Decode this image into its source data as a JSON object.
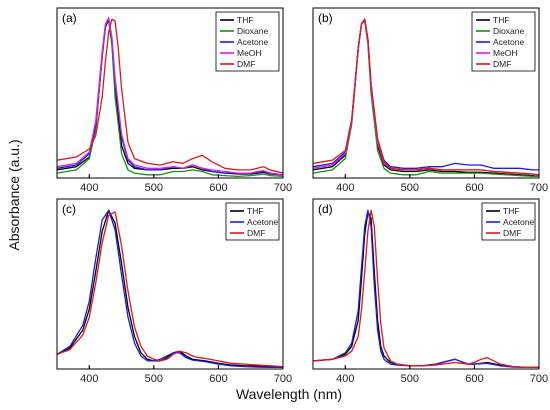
{
  "figure": {
    "xlabel": "Wavelength (nm)",
    "ylabel": "Absorbance (a.u.)"
  },
  "chart_data": [
    {
      "type": "line",
      "panel_label": "(a)",
      "xlim": [
        350,
        700
      ],
      "xticks": [
        400,
        500,
        600,
        700
      ],
      "ylim": [
        0,
        1.05
      ],
      "legend_position": "top-right",
      "series": [
        {
          "name": "THF",
          "color": "#000000",
          "x": [
            350,
            380,
            400,
            410,
            420,
            425,
            430,
            435,
            440,
            450,
            460,
            470,
            490,
            510,
            530,
            545,
            560,
            575,
            590,
            610,
            630,
            650,
            660,
            670,
            680,
            700
          ],
          "y": [
            0.05,
            0.07,
            0.13,
            0.3,
            0.75,
            0.93,
            0.98,
            0.85,
            0.55,
            0.2,
            0.09,
            0.06,
            0.05,
            0.05,
            0.06,
            0.06,
            0.07,
            0.05,
            0.04,
            0.03,
            0.025,
            0.025,
            0.03,
            0.035,
            0.025,
            0.02
          ]
        },
        {
          "name": "Dioxane",
          "color": "#1a8c1a",
          "x": [
            350,
            380,
            400,
            410,
            420,
            425,
            430,
            435,
            440,
            450,
            460,
            470,
            490,
            510,
            530,
            545,
            560,
            575,
            590,
            610,
            630,
            650,
            660,
            670,
            680,
            700
          ],
          "y": [
            0.03,
            0.05,
            0.12,
            0.3,
            0.75,
            0.94,
            0.97,
            0.82,
            0.5,
            0.15,
            0.05,
            0.03,
            0.02,
            0.02,
            0.04,
            0.04,
            0.05,
            0.04,
            0.02,
            0.015,
            0.01,
            0.015,
            0.02,
            0.025,
            0.015,
            0.01
          ]
        },
        {
          "name": "Acetone",
          "color": "#1a1aee",
          "x": [
            350,
            380,
            400,
            410,
            420,
            425,
            430,
            435,
            440,
            450,
            460,
            470,
            490,
            510,
            530,
            545,
            560,
            575,
            590,
            610,
            630,
            650,
            660,
            670,
            680,
            700
          ],
          "y": [
            0.06,
            0.08,
            0.15,
            0.33,
            0.77,
            0.94,
            0.98,
            0.86,
            0.6,
            0.25,
            0.11,
            0.07,
            0.05,
            0.05,
            0.07,
            0.06,
            0.08,
            0.06,
            0.04,
            0.03,
            0.03,
            0.03,
            0.035,
            0.04,
            0.03,
            0.02
          ]
        },
        {
          "name": "MeOH",
          "color": "#e020e0",
          "x": [
            350,
            380,
            400,
            410,
            420,
            425,
            430,
            435,
            440,
            450,
            460,
            470,
            490,
            510,
            530,
            545,
            560,
            575,
            590,
            610,
            630,
            650,
            660,
            670,
            680,
            700
          ],
          "y": [
            0.07,
            0.09,
            0.16,
            0.35,
            0.78,
            0.95,
            0.99,
            0.87,
            0.62,
            0.27,
            0.12,
            0.08,
            0.06,
            0.06,
            0.07,
            0.06,
            0.08,
            0.06,
            0.05,
            0.04,
            0.03,
            0.03,
            0.04,
            0.045,
            0.03,
            0.02
          ]
        },
        {
          "name": "DMF",
          "color": "#e01818",
          "x": [
            350,
            380,
            400,
            410,
            420,
            425,
            430,
            435,
            440,
            445,
            450,
            460,
            470,
            490,
            510,
            530,
            545,
            560,
            575,
            590,
            610,
            630,
            650,
            660,
            670,
            680,
            700
          ],
          "y": [
            0.11,
            0.13,
            0.18,
            0.26,
            0.5,
            0.72,
            0.9,
            0.98,
            0.97,
            0.8,
            0.55,
            0.22,
            0.12,
            0.09,
            0.08,
            0.1,
            0.09,
            0.12,
            0.14,
            0.1,
            0.06,
            0.05,
            0.05,
            0.06,
            0.07,
            0.05,
            0.03
          ]
        }
      ]
    },
    {
      "type": "line",
      "panel_label": "(b)",
      "xlim": [
        350,
        700
      ],
      "xticks": [
        400,
        500,
        600,
        700
      ],
      "ylim": [
        0,
        1.05
      ],
      "legend_position": "top-right",
      "series": [
        {
          "name": "THF",
          "color": "#000000",
          "x": [
            350,
            380,
            400,
            410,
            420,
            425,
            430,
            435,
            440,
            450,
            460,
            470,
            490,
            510,
            530,
            550,
            570,
            590,
            610,
            630,
            650,
            670,
            690,
            700
          ],
          "y": [
            0.05,
            0.07,
            0.14,
            0.35,
            0.8,
            0.95,
            0.98,
            0.85,
            0.55,
            0.2,
            0.08,
            0.05,
            0.04,
            0.04,
            0.05,
            0.04,
            0.04,
            0.035,
            0.035,
            0.03,
            0.025,
            0.02,
            0.015,
            0.01
          ]
        },
        {
          "name": "Dioxane",
          "color": "#1a8c1a",
          "x": [
            350,
            380,
            400,
            410,
            420,
            425,
            430,
            435,
            440,
            450,
            460,
            470,
            490,
            510,
            530,
            550,
            570,
            590,
            610,
            630,
            650,
            670,
            690,
            700
          ],
          "y": [
            0.03,
            0.05,
            0.12,
            0.33,
            0.79,
            0.95,
            0.97,
            0.83,
            0.52,
            0.17,
            0.06,
            0.03,
            0.02,
            0.02,
            0.04,
            0.03,
            0.03,
            0.03,
            0.03,
            0.025,
            0.02,
            0.015,
            0.01,
            0.01
          ]
        },
        {
          "name": "Acetone",
          "color": "#1a1aee",
          "x": [
            350,
            380,
            400,
            410,
            420,
            425,
            430,
            435,
            440,
            450,
            460,
            470,
            490,
            510,
            530,
            550,
            570,
            590,
            610,
            630,
            650,
            670,
            690,
            700
          ],
          "y": [
            0.07,
            0.09,
            0.16,
            0.36,
            0.8,
            0.95,
            0.98,
            0.86,
            0.58,
            0.24,
            0.11,
            0.07,
            0.06,
            0.06,
            0.07,
            0.07,
            0.09,
            0.08,
            0.08,
            0.06,
            0.06,
            0.06,
            0.05,
            0.05
          ]
        },
        {
          "name": "MeOH",
          "color": "#e020e0",
          "x": [
            350,
            380,
            400,
            410,
            420,
            425,
            430,
            435,
            440,
            450,
            460,
            470,
            490,
            510,
            530,
            550,
            570,
            590,
            610,
            630,
            650,
            670,
            690,
            700
          ],
          "y": [
            0.06,
            0.08,
            0.15,
            0.35,
            0.8,
            0.95,
            0.98,
            0.85,
            0.56,
            0.22,
            0.09,
            0.06,
            0.05,
            0.05,
            0.06,
            0.05,
            0.05,
            0.05,
            0.05,
            0.04,
            0.035,
            0.03,
            0.025,
            0.02
          ]
        },
        {
          "name": "DMF",
          "color": "#e01818",
          "x": [
            350,
            380,
            400,
            410,
            420,
            425,
            430,
            435,
            440,
            450,
            460,
            470,
            490,
            510,
            530,
            550,
            570,
            590,
            610,
            630,
            650,
            670,
            690,
            700
          ],
          "y": [
            0.09,
            0.11,
            0.17,
            0.36,
            0.8,
            0.95,
            0.98,
            0.86,
            0.58,
            0.24,
            0.1,
            0.06,
            0.05,
            0.05,
            0.06,
            0.05,
            0.05,
            0.05,
            0.05,
            0.04,
            0.035,
            0.03,
            0.025,
            0.02
          ]
        }
      ]
    },
    {
      "type": "line",
      "panel_label": "(c)",
      "xlim": [
        350,
        700
      ],
      "xticks": [
        400,
        500,
        600,
        700
      ],
      "ylim": [
        0,
        1.05
      ],
      "legend_position": "top-right",
      "series": [
        {
          "name": "THF",
          "color": "#000000",
          "x": [
            350,
            370,
            390,
            400,
            410,
            420,
            430,
            440,
            450,
            460,
            470,
            480,
            490,
            500,
            510,
            520,
            530,
            540,
            550,
            560,
            570,
            580,
            600,
            620,
            640,
            660,
            680,
            700
          ],
          "y": [
            0.09,
            0.13,
            0.24,
            0.37,
            0.6,
            0.85,
            0.98,
            0.9,
            0.65,
            0.38,
            0.2,
            0.1,
            0.06,
            0.05,
            0.05,
            0.07,
            0.1,
            0.11,
            0.08,
            0.06,
            0.055,
            0.05,
            0.035,
            0.025,
            0.02,
            0.018,
            0.015,
            0.01
          ]
        },
        {
          "name": "Acetone",
          "color": "#1a1aee",
          "x": [
            350,
            370,
            390,
            400,
            410,
            420,
            430,
            440,
            450,
            460,
            470,
            480,
            490,
            500,
            510,
            520,
            530,
            540,
            550,
            560,
            570,
            580,
            600,
            620,
            640,
            660,
            680,
            700
          ],
          "y": [
            0.09,
            0.14,
            0.27,
            0.42,
            0.68,
            0.92,
            0.98,
            0.86,
            0.58,
            0.32,
            0.16,
            0.08,
            0.05,
            0.05,
            0.06,
            0.08,
            0.1,
            0.1,
            0.07,
            0.055,
            0.05,
            0.045,
            0.03,
            0.02,
            0.015,
            0.012,
            0.01,
            0.01
          ]
        },
        {
          "name": "DMF",
          "color": "#e01818",
          "x": [
            350,
            370,
            390,
            400,
            410,
            420,
            430,
            440,
            450,
            460,
            470,
            480,
            490,
            500,
            510,
            520,
            530,
            540,
            550,
            560,
            570,
            580,
            600,
            620,
            640,
            660,
            680,
            700
          ],
          "y": [
            0.09,
            0.12,
            0.21,
            0.32,
            0.53,
            0.78,
            0.95,
            0.97,
            0.76,
            0.48,
            0.26,
            0.14,
            0.08,
            0.06,
            0.05,
            0.06,
            0.09,
            0.11,
            0.1,
            0.08,
            0.07,
            0.065,
            0.05,
            0.035,
            0.03,
            0.025,
            0.02,
            0.015
          ]
        }
      ]
    },
    {
      "type": "line",
      "panel_label": "(d)",
      "xlim": [
        350,
        700
      ],
      "xticks": [
        400,
        500,
        600,
        700
      ],
      "ylim": [
        0,
        1.05
      ],
      "legend_position": "top-right",
      "series": [
        {
          "name": "THF",
          "color": "#000000",
          "x": [
            350,
            380,
            400,
            410,
            420,
            425,
            430,
            435,
            440,
            445,
            450,
            455,
            460,
            470,
            480,
            500,
            520,
            540,
            560,
            570,
            580,
            590,
            600,
            620,
            640,
            660,
            680,
            700
          ],
          "y": [
            0.05,
            0.06,
            0.09,
            0.14,
            0.3,
            0.55,
            0.83,
            0.97,
            0.93,
            0.6,
            0.3,
            0.14,
            0.08,
            0.04,
            0.03,
            0.02,
            0.02,
            0.03,
            0.05,
            0.06,
            0.045,
            0.03,
            0.03,
            0.04,
            0.025,
            0.015,
            0.01,
            0.01
          ]
        },
        {
          "name": "Acetone",
          "color": "#1a1aee",
          "x": [
            350,
            380,
            400,
            410,
            420,
            425,
            430,
            435,
            440,
            445,
            450,
            455,
            460,
            470,
            480,
            500,
            520,
            540,
            560,
            570,
            580,
            590,
            600,
            620,
            640,
            660,
            680,
            700
          ],
          "y": [
            0.05,
            0.06,
            0.1,
            0.16,
            0.36,
            0.62,
            0.88,
            0.98,
            0.88,
            0.52,
            0.24,
            0.11,
            0.06,
            0.03,
            0.025,
            0.02,
            0.02,
            0.03,
            0.05,
            0.06,
            0.045,
            0.03,
            0.03,
            0.035,
            0.02,
            0.012,
            0.01,
            0.01
          ]
        },
        {
          "name": "DMF",
          "color": "#e01818",
          "x": [
            350,
            380,
            400,
            410,
            420,
            425,
            430,
            435,
            440,
            445,
            450,
            455,
            460,
            470,
            480,
            500,
            520,
            540,
            560,
            570,
            580,
            590,
            600,
            610,
            620,
            630,
            640,
            660,
            680,
            700
          ],
          "y": [
            0.05,
            0.06,
            0.08,
            0.11,
            0.2,
            0.36,
            0.6,
            0.85,
            0.98,
            0.88,
            0.55,
            0.28,
            0.13,
            0.05,
            0.03,
            0.02,
            0.02,
            0.025,
            0.035,
            0.04,
            0.035,
            0.03,
            0.04,
            0.06,
            0.07,
            0.05,
            0.03,
            0.015,
            0.01,
            0.01
          ]
        }
      ]
    }
  ]
}
